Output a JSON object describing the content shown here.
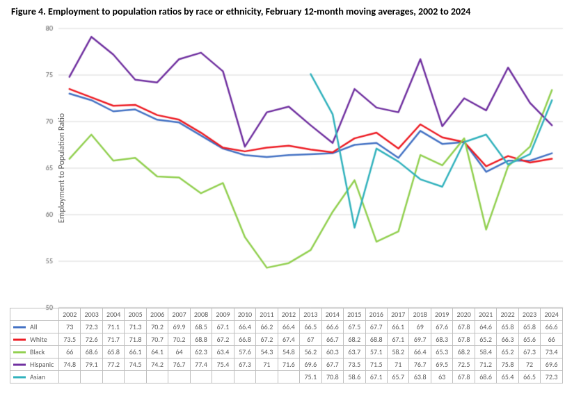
{
  "title": "Figure 4. Employment to population ratios by race or ethnicity, February 12-month moving averages, 2002 to 2024",
  "ylabel": "Employment to Population Ratio",
  "ylim": [
    50,
    80
  ],
  "ytick_step": 5,
  "categories": [
    "2002",
    "2003",
    "2004",
    "2005",
    "2006",
    "2007",
    "2008",
    "2009",
    "2010",
    "2011",
    "2012",
    "2013",
    "2014",
    "2015",
    "2016",
    "2017",
    "2018",
    "2019",
    "2020",
    "2021",
    "2022",
    "2023",
    "2024"
  ],
  "series": [
    {
      "name": "All",
      "color": "#4472c4",
      "width": 2.5,
      "values": [
        73,
        72.3,
        71.1,
        71.3,
        70.2,
        69.9,
        68.5,
        67.1,
        66.4,
        66.2,
        66.4,
        66.5,
        66.6,
        67.5,
        67.7,
        66.1,
        69,
        67.6,
        67.8,
        64.6,
        65.8,
        65.8,
        66.6
      ]
    },
    {
      "name": "White",
      "color": "#ed1c24",
      "width": 2.5,
      "values": [
        73.5,
        72.6,
        71.7,
        71.8,
        70.7,
        70.2,
        68.8,
        67.2,
        66.8,
        67.2,
        67.4,
        67,
        66.7,
        68.2,
        68.8,
        67.1,
        69.7,
        68.3,
        67.8,
        65.2,
        66.3,
        65.6,
        66
      ]
    },
    {
      "name": "Black",
      "color": "#92d050",
      "width": 2.5,
      "values": [
        66,
        68.6,
        65.8,
        66.1,
        64.1,
        64,
        62.3,
        63.4,
        57.6,
        54.3,
        54.8,
        56.2,
        60.3,
        63.7,
        57.1,
        58.2,
        66.4,
        65.3,
        68.2,
        58.4,
        65.2,
        67.3,
        73.4
      ]
    },
    {
      "name": "Hispanic",
      "color": "#7030a0",
      "width": 2.5,
      "values": [
        74.8,
        79.1,
        77.2,
        74.5,
        74.2,
        76.7,
        77.4,
        75.4,
        67.3,
        71,
        71.6,
        69.6,
        67.7,
        73.5,
        71.5,
        71,
        76.7,
        69.5,
        72.5,
        71.2,
        75.8,
        72,
        69.6
      ]
    },
    {
      "name": "Asian",
      "color": "#31b2bd",
      "width": 2.5,
      "values": [
        null,
        null,
        null,
        null,
        null,
        null,
        null,
        null,
        null,
        null,
        null,
        75.1,
        70.8,
        58.6,
        67.1,
        65.7,
        63.8,
        63.0,
        67.8,
        68.6,
        65.4,
        66.5,
        72.3
      ]
    }
  ],
  "background_color": "#ffffff",
  "gridline_color": "#d9d9d9",
  "axis_color": "#bfbfbf",
  "tick_fontsize": 10,
  "tick_font_color": "#595959"
}
